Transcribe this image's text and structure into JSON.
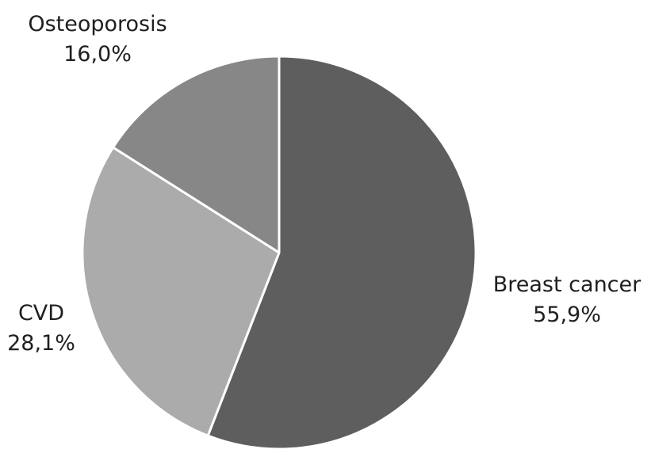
{
  "chart_data": {
    "type": "pie",
    "title": "",
    "legend": "none",
    "slices": [
      {
        "label": "Breast cancer",
        "value": 55.9,
        "value_label": "55,9%",
        "color": "#5e5e5e"
      },
      {
        "label": "CVD",
        "value": 28.1,
        "value_label": "28,1%",
        "color": "#ababab"
      },
      {
        "label": "Osteoporosis",
        "value": 16.0,
        "value_label": "16,0%",
        "color": "#878787"
      }
    ]
  }
}
